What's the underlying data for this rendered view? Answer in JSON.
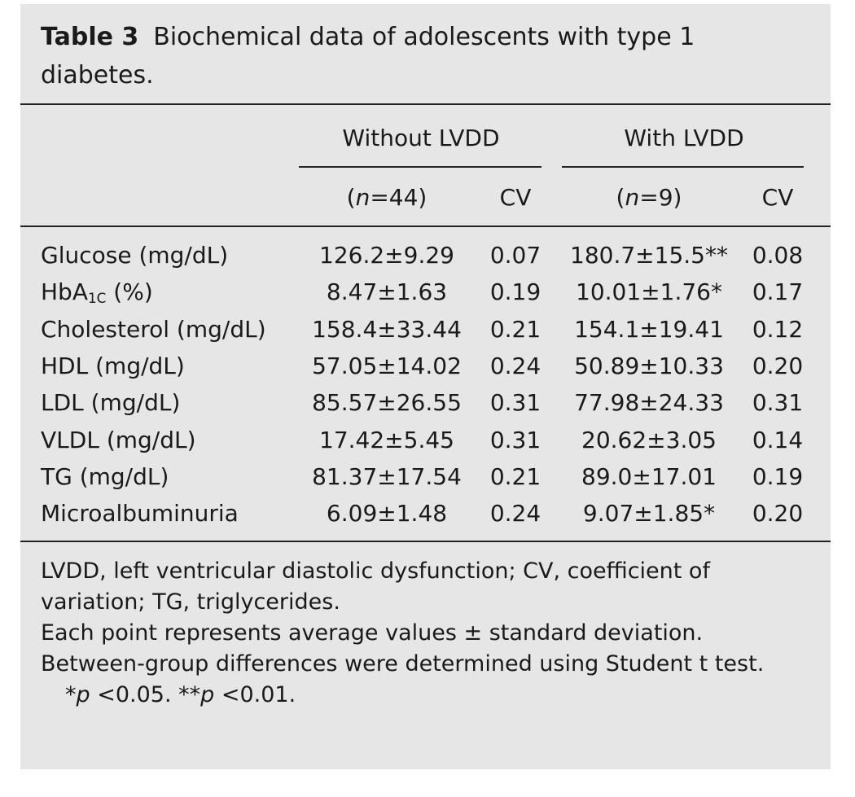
{
  "table": {
    "label": "Table 3",
    "caption": "Biochemical data of adolescents with type 1 diabetes.",
    "groups": [
      "Without LVDD",
      "With LVDD"
    ],
    "subheaders": [
      {
        "pre": "(",
        "italic": "n",
        "post": "=44)"
      },
      "CV",
      {
        "pre": "(",
        "italic": "n",
        "post": "=9)"
      },
      "CV"
    ],
    "rows": [
      [
        "Glucose (mg/dL)",
        "126.2±9.29",
        "0.07",
        "180.7±15.5**",
        "0.08"
      ],
      [
        {
          "main": "HbA",
          "sub": "1C",
          "rest": " (%)"
        },
        "8.47±1.63",
        "0.19",
        "10.01±1.76*",
        "0.17"
      ],
      [
        "Cholesterol (mg/dL)",
        "158.4±33.44",
        "0.21",
        "154.1±19.41",
        "0.12"
      ],
      [
        "HDL (mg/dL)",
        "57.05±14.02",
        "0.24",
        "50.89±10.33",
        "0.20"
      ],
      [
        "LDL (mg/dL)",
        "85.57±26.55",
        "0.31",
        "77.98±24.33",
        "0.31"
      ],
      [
        "VLDL (mg/dL)",
        "17.42±5.45",
        "0.31",
        "20.62±3.05",
        "0.14"
      ],
      [
        "TG (mg/dL)",
        "81.37±17.54",
        "0.21",
        "89.0±17.01",
        "0.19"
      ],
      [
        "Microalbuminuria",
        "6.09±1.48",
        "0.24",
        "9.07±1.85*",
        "0.20"
      ]
    ]
  },
  "notes": {
    "abbreviations": "LVDD, left ventricular diastolic dysfunction; CV, coefficient of variation; TG, triglycerides.",
    "description": "Each point represents average values ± standard deviation.",
    "method": "Between-group differences were determined using Student t test.",
    "significance": [
      "*",
      "p",
      " <0.05. **",
      "p",
      " <0.01."
    ]
  }
}
